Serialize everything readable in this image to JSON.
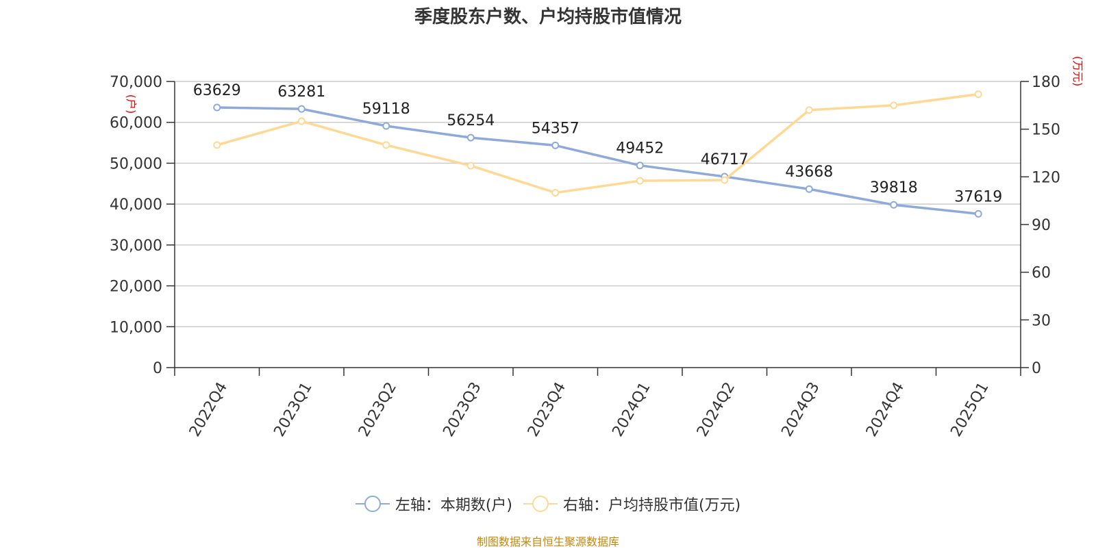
{
  "colors": {
    "left_series": "#8eaadb",
    "right_series": "#ffd993",
    "unit_label": "#e60000",
    "grid": "#cccccc"
  },
  "source": "制图数据来自恒生聚源数据库",
  "chart_data": {
    "type": "line",
    "title": "季度股东户数、户均持股市值情况",
    "categories": [
      "2022Q4",
      "2023Q1",
      "2023Q2",
      "2023Q3",
      "2023Q4",
      "2024Q1",
      "2024Q2",
      "2024Q3",
      "2024Q4",
      "2025Q1"
    ],
    "left_axis": {
      "unit": "(户)",
      "ylim": [
        0,
        70000
      ],
      "ticks": [
        "0",
        "10,000",
        "20,000",
        "30,000",
        "40,000",
        "50,000",
        "60,000",
        "70,000"
      ]
    },
    "right_axis": {
      "unit": "(万元)",
      "ylim": [
        0,
        180
      ],
      "ticks": [
        "0",
        "30",
        "60",
        "90",
        "120",
        "150",
        "180"
      ]
    },
    "grid": true,
    "legend_position": "bottom",
    "series": [
      {
        "name": "左轴：本期数(户)",
        "axis": "left",
        "values": [
          63629,
          63281,
          59118,
          56254,
          54357,
          49452,
          46717,
          43668,
          39818,
          37619
        ],
        "show_labels": true
      },
      {
        "name": "右轴：户均持股市值(万元)",
        "axis": "right",
        "values": [
          140,
          155,
          140,
          127,
          110,
          117.5,
          118,
          162,
          165,
          172
        ],
        "show_labels": false
      }
    ]
  }
}
